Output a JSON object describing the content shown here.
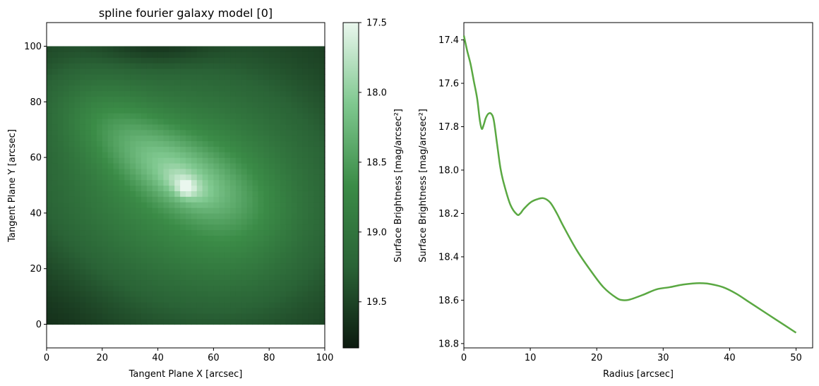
{
  "chart_data": [
    {
      "type": "heatmap",
      "title": "spline fourier galaxy model [0]",
      "xlabel": "Tangent Plane X [arcsec]",
      "ylabel": "Tangent Plane Y [arcsec]",
      "xlim": [
        0,
        100
      ],
      "ylim": [
        -8.5,
        108.5
      ],
      "extent": [
        0,
        100,
        0,
        100
      ],
      "xticks": [
        0,
        20,
        40,
        60,
        80,
        100
      ],
      "yticks": [
        0,
        20,
        40,
        60,
        80,
        100
      ],
      "colormap": [
        "#0c1a0f",
        "#2a6336",
        "#3b8c47",
        "#7fc88f",
        "#eaf7ee"
      ],
      "colorbar": {
        "label": "Surface Brightness [mag/arcsec²]",
        "range": [
          17.5,
          19.83
        ],
        "reversed": true,
        "ticks": [
          17.5,
          18.0,
          18.5,
          19.0,
          19.5
        ],
        "tick_labels": [
          "17.5",
          "18.0",
          "18.5",
          "19.0",
          "19.5"
        ]
      },
      "grid": false
    },
    {
      "type": "line",
      "xlabel": "Radius [arcsec]",
      "ylabel": "Surface Brightness [mag/arcsec²]",
      "xlim": [
        0,
        52.5
      ],
      "ylim": [
        18.82,
        17.32
      ],
      "y_inverted": true,
      "xticks": [
        0,
        10,
        20,
        30,
        40,
        50
      ],
      "yticks": [
        17.4,
        17.6,
        17.8,
        18.0,
        18.2,
        18.4,
        18.6,
        18.8
      ],
      "ytick_labels": [
        "17.4",
        "17.6",
        "17.8",
        "18.0",
        "18.2",
        "18.4",
        "18.6",
        "18.8"
      ],
      "grid": false,
      "series": [
        {
          "color": "#5aa842",
          "x": [
            0,
            0.5,
            1,
            1.5,
            2,
            2.4,
            2.7,
            3.0,
            3.3,
            3.7,
            4.1,
            4.5,
            5.0,
            5.5,
            6,
            7,
            8,
            8.5,
            9,
            10,
            11,
            12,
            13,
            14,
            15,
            17,
            19,
            21,
            23,
            24,
            25,
            27,
            29,
            31,
            33,
            35,
            36,
            37,
            39,
            41,
            43,
            45,
            47,
            50
          ],
          "y": [
            17.38,
            17.45,
            17.51,
            17.59,
            17.67,
            17.77,
            17.81,
            17.79,
            17.76,
            17.74,
            17.74,
            17.77,
            17.88,
            17.99,
            18.06,
            18.16,
            18.205,
            18.2,
            18.18,
            18.15,
            18.135,
            18.13,
            18.15,
            18.2,
            18.26,
            18.37,
            18.46,
            18.54,
            18.59,
            18.6,
            18.597,
            18.575,
            18.55,
            18.54,
            18.528,
            18.522,
            18.522,
            18.525,
            18.54,
            18.57,
            18.61,
            18.65,
            18.69,
            18.75
          ]
        }
      ]
    }
  ]
}
